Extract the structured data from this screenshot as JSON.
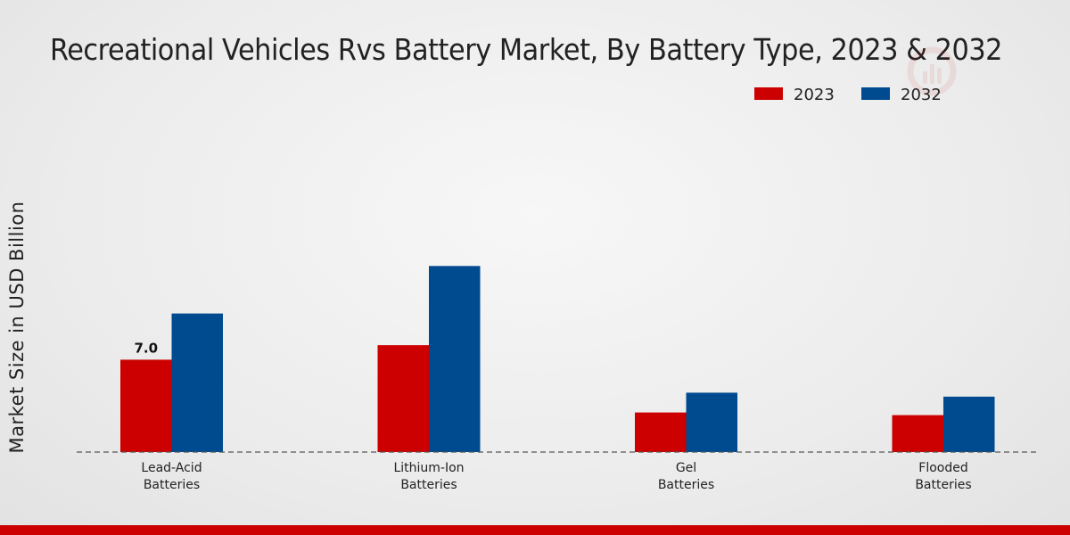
{
  "chart_data": {
    "type": "bar",
    "title": "Recreational Vehicles Rvs Battery Market, By Battery Type, 2023 & 2032",
    "xlabel": "",
    "ylabel": "Market Size in USD Billion",
    "categories": [
      [
        "Lead-Acid",
        "Batteries"
      ],
      [
        "Lithium-Ion",
        "Batteries"
      ],
      [
        "Gel",
        "Batteries"
      ],
      [
        "Flooded",
        "Batteries"
      ]
    ],
    "series": [
      {
        "name": "2023",
        "color": "#cc0000",
        "values": [
          7.0,
          8.1,
          3.0,
          2.8
        ]
      },
      {
        "name": "2032",
        "color": "#004a8f",
        "values": [
          10.5,
          14.1,
          4.5,
          4.2
        ]
      }
    ],
    "data_labels": [
      {
        "series": 0,
        "index": 0,
        "text": "7.0"
      }
    ],
    "ylim": [
      0,
      20
    ],
    "legend_position": "top-right",
    "grid": false
  }
}
